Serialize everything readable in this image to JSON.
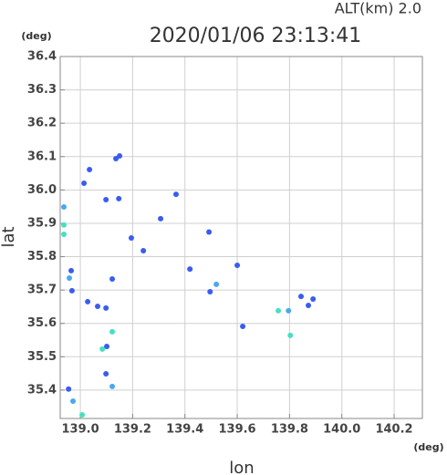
{
  "chart_data": {
    "type": "scatter",
    "title": "2020/01/06 23:13:41",
    "subtitle": "ALT(km)  2.0",
    "xlabel": "lon",
    "ylabel": "lat",
    "x_unit": "(deg)",
    "y_unit": "(deg)",
    "x": [
      139.035,
      139.014,
      139.147,
      139.098,
      139.136,
      139.15,
      138.937,
      138.937,
      138.937,
      138.965,
      138.958,
      138.968,
      139.028,
      139.066,
      139.098,
      139.122,
      139.101,
      139.084,
      139.098,
      139.122,
      138.955,
      138.972,
      139.007,
      139.366,
      139.307,
      139.419,
      139.496,
      139.52,
      139.6,
      139.621,
      139.757,
      139.796,
      139.803,
      139.89,
      139.872,
      139.844,
      139.122,
      139.195,
      139.241,
      139.492
    ],
    "y": [
      36.061,
      36.02,
      35.974,
      35.971,
      36.094,
      36.102,
      35.949,
      35.895,
      35.867,
      35.758,
      35.736,
      35.698,
      35.665,
      35.651,
      35.646,
      35.575,
      35.531,
      35.523,
      35.449,
      35.411,
      35.403,
      35.367,
      35.326,
      35.987,
      35.914,
      35.763,
      35.695,
      35.717,
      35.774,
      35.591,
      35.638,
      35.638,
      35.564,
      35.673,
      35.654,
      35.681,
      35.733,
      35.856,
      35.818,
      35.874
    ],
    "colors": [
      "#3a5cf0",
      "#3a5cf0",
      "#3a5cf0",
      "#3a5cf0",
      "#3a5cf0",
      "#3a5cf0",
      "#4aa8f0",
      "#46e0c0",
      "#46e0c0",
      "#3a5cf0",
      "#4aa8f0",
      "#3a5cf0",
      "#3a5cf0",
      "#3a5cf0",
      "#3a5cf0",
      "#46e0c0",
      "#3a5cf0",
      "#46e0c0",
      "#3a5cf0",
      "#4aa8f0",
      "#3a5cf0",
      "#4aa8f0",
      "#46e0c0",
      "#3a5cf0",
      "#3a5cf0",
      "#3a5cf0",
      "#3a5cf0",
      "#4aa8f0",
      "#3a5cf0",
      "#3a5cf0",
      "#46e0c0",
      "#4aa8f0",
      "#46e0c0",
      "#3a5cf0",
      "#3a5cf0",
      "#3a5cf0",
      "#3a5cf0",
      "#3a5cf0",
      "#3a5cf0",
      "#3a5cf0"
    ],
    "xlim": [
      138.923,
      140.308
    ],
    "ylim": [
      35.315,
      36.4
    ],
    "xticks": [
      {
        "value": 139,
        "label": "139.0"
      },
      139.2,
      139.4,
      139.6,
      139.8,
      {
        "value": 140,
        "label": "140.0"
      },
      140.2
    ],
    "yticks": [
      35.4,
      35.5,
      35.6,
      35.7,
      35.8,
      35.9,
      {
        "value": 36,
        "label": "36.0"
      },
      36.1,
      36.2,
      36.3,
      36.4
    ],
    "grid": true
  }
}
